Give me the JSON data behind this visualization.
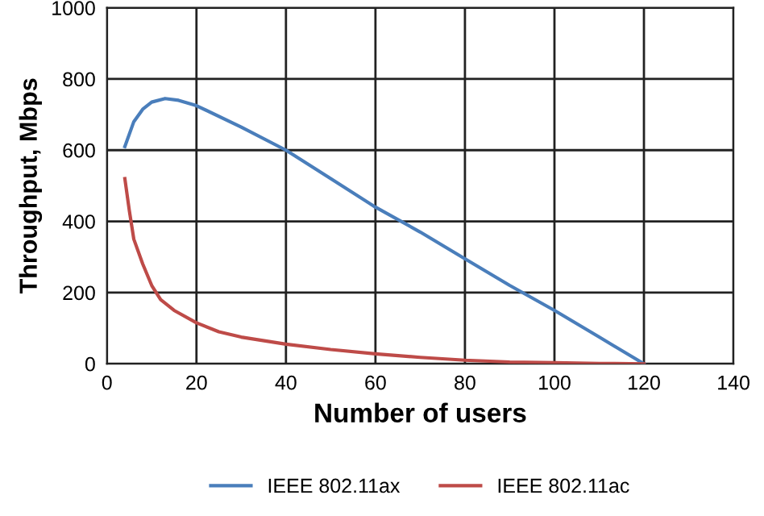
{
  "chart_data": {
    "type": "line",
    "xlabel": "Number of users",
    "ylabel": "Throughput, Mbps",
    "xlim": [
      0,
      140
    ],
    "xticks": [
      0,
      20,
      40,
      60,
      80,
      100,
      120,
      140
    ],
    "ylim": [
      0,
      1000
    ],
    "yticks": [
      0,
      200,
      400,
      600,
      800,
      1000
    ],
    "grid": true,
    "legend": "bottom",
    "marker": "none",
    "line_style": "solid",
    "series": [
      {
        "name": "IEEE 802.11ax",
        "color": "#4a7ebb",
        "x": [
          4,
          6,
          8,
          10,
          13,
          16,
          20,
          30,
          40,
          50,
          60,
          70,
          80,
          90,
          100,
          110,
          120
        ],
        "values": [
          610,
          680,
          715,
          735,
          745,
          740,
          725,
          665,
          600,
          520,
          440,
          370,
          295,
          220,
          150,
          75,
          0
        ]
      },
      {
        "name": "IEEE 802.11ac",
        "color": "#be4b48",
        "x": [
          4,
          5,
          6,
          8,
          10,
          12,
          15,
          20,
          25,
          30,
          40,
          50,
          60,
          70,
          80,
          90,
          100,
          110,
          120
        ],
        "values": [
          520,
          430,
          350,
          280,
          220,
          180,
          150,
          115,
          90,
          75,
          55,
          40,
          28,
          18,
          10,
          5,
          3,
          1,
          0
        ]
      }
    ]
  }
}
